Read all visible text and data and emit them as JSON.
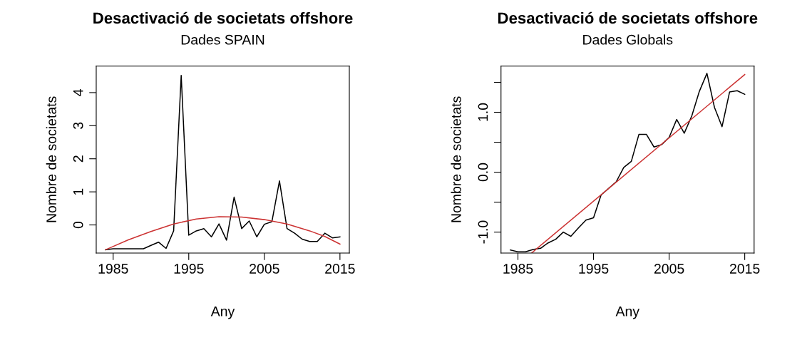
{
  "chart_data": [
    {
      "type": "line",
      "title": "Desactivació de societats offshore",
      "subtitle": "Dades SPAIN",
      "xlabel": "Any",
      "ylabel": "Nombre de societats",
      "xlim": [
        1982.76,
        2016.24
      ],
      "xticks": [
        1985,
        1995,
        2005,
        2015
      ],
      "ylim": [
        -0.85,
        4.8
      ],
      "yticks": [
        0,
        1,
        2,
        3,
        4
      ],
      "grid": false,
      "legend": false,
      "marker": "none",
      "line_style": "solid",
      "series": [
        {
          "color": "#000000",
          "x": [
            1984,
            1985,
            1986,
            1987,
            1988,
            1989,
            1990,
            1991,
            1992,
            1993,
            1994,
            1995,
            1996,
            1997,
            1998,
            1999,
            2000,
            2001,
            2002,
            2003,
            2004,
            2005,
            2006,
            2007,
            2008,
            2009,
            2010,
            2011,
            2012,
            2013,
            2014,
            2015
          ],
          "values": [
            -0.75,
            -0.72,
            -0.72,
            -0.72,
            -0.72,
            -0.72,
            -0.62,
            -0.52,
            -0.71,
            -0.18,
            4.52,
            -0.31,
            -0.18,
            -0.11,
            -0.36,
            0.03,
            -0.46,
            0.84,
            -0.11,
            0.12,
            -0.36,
            0.02,
            0.1,
            1.33,
            -0.11,
            -0.25,
            -0.43,
            -0.5,
            -0.5,
            -0.25,
            -0.39,
            -0.36
          ]
        },
        {
          "color": "#cc3333",
          "x": [
            1984,
            1987,
            1990,
            1993,
            1996,
            1999,
            2002,
            2005,
            2008,
            2011,
            2013,
            2015
          ],
          "values": [
            -0.75,
            -0.45,
            -0.2,
            0.03,
            0.18,
            0.25,
            0.24,
            0.16,
            0.03,
            -0.18,
            -0.35,
            -0.58
          ]
        }
      ]
    },
    {
      "type": "line",
      "title": "Desactivació de societats offshore",
      "subtitle": "Dades Globals",
      "xlabel": "Any",
      "ylabel": "Nombre de societats",
      "xlim": [
        1982.76,
        2016.24
      ],
      "xticks": [
        1985,
        1995,
        2005,
        2015
      ],
      "ylim": [
        -1.35,
        1.77
      ],
      "yticks": [
        {
          "value": -1.0,
          "label": "-1.0"
        },
        {
          "value": -0.5,
          "label": null
        },
        {
          "value": 0.0,
          "label": "0.0"
        },
        {
          "value": 0.5,
          "label": null
        },
        {
          "value": 1.0,
          "label": "1.0"
        },
        {
          "value": 1.5,
          "label": null
        }
      ],
      "grid": false,
      "legend": false,
      "marker": "none",
      "line_style": "solid",
      "series": [
        {
          "color": "#000000",
          "x": [
            1984,
            1985,
            1986,
            1987,
            1988,
            1989,
            1990,
            1991,
            1992,
            1993,
            1994,
            1995,
            1996,
            1997,
            1998,
            1999,
            2000,
            2001,
            2002,
            2003,
            2004,
            2005,
            2006,
            2007,
            2008,
            2009,
            2010,
            2011,
            2012,
            2013,
            2014,
            2015
          ],
          "values": [
            -1.3,
            -1.33,
            -1.33,
            -1.29,
            -1.27,
            -1.18,
            -1.12,
            -1.0,
            -1.07,
            -0.93,
            -0.8,
            -0.76,
            -0.38,
            -0.27,
            -0.16,
            0.08,
            0.18,
            0.63,
            0.63,
            0.42,
            0.46,
            0.58,
            0.88,
            0.65,
            0.94,
            1.35,
            1.65,
            1.08,
            0.76,
            1.34,
            1.36,
            1.3
          ]
        },
        {
          "color": "#cc3333",
          "x": [
            1986.8,
            2015
          ],
          "values": [
            -1.35,
            1.63
          ]
        }
      ]
    }
  ]
}
